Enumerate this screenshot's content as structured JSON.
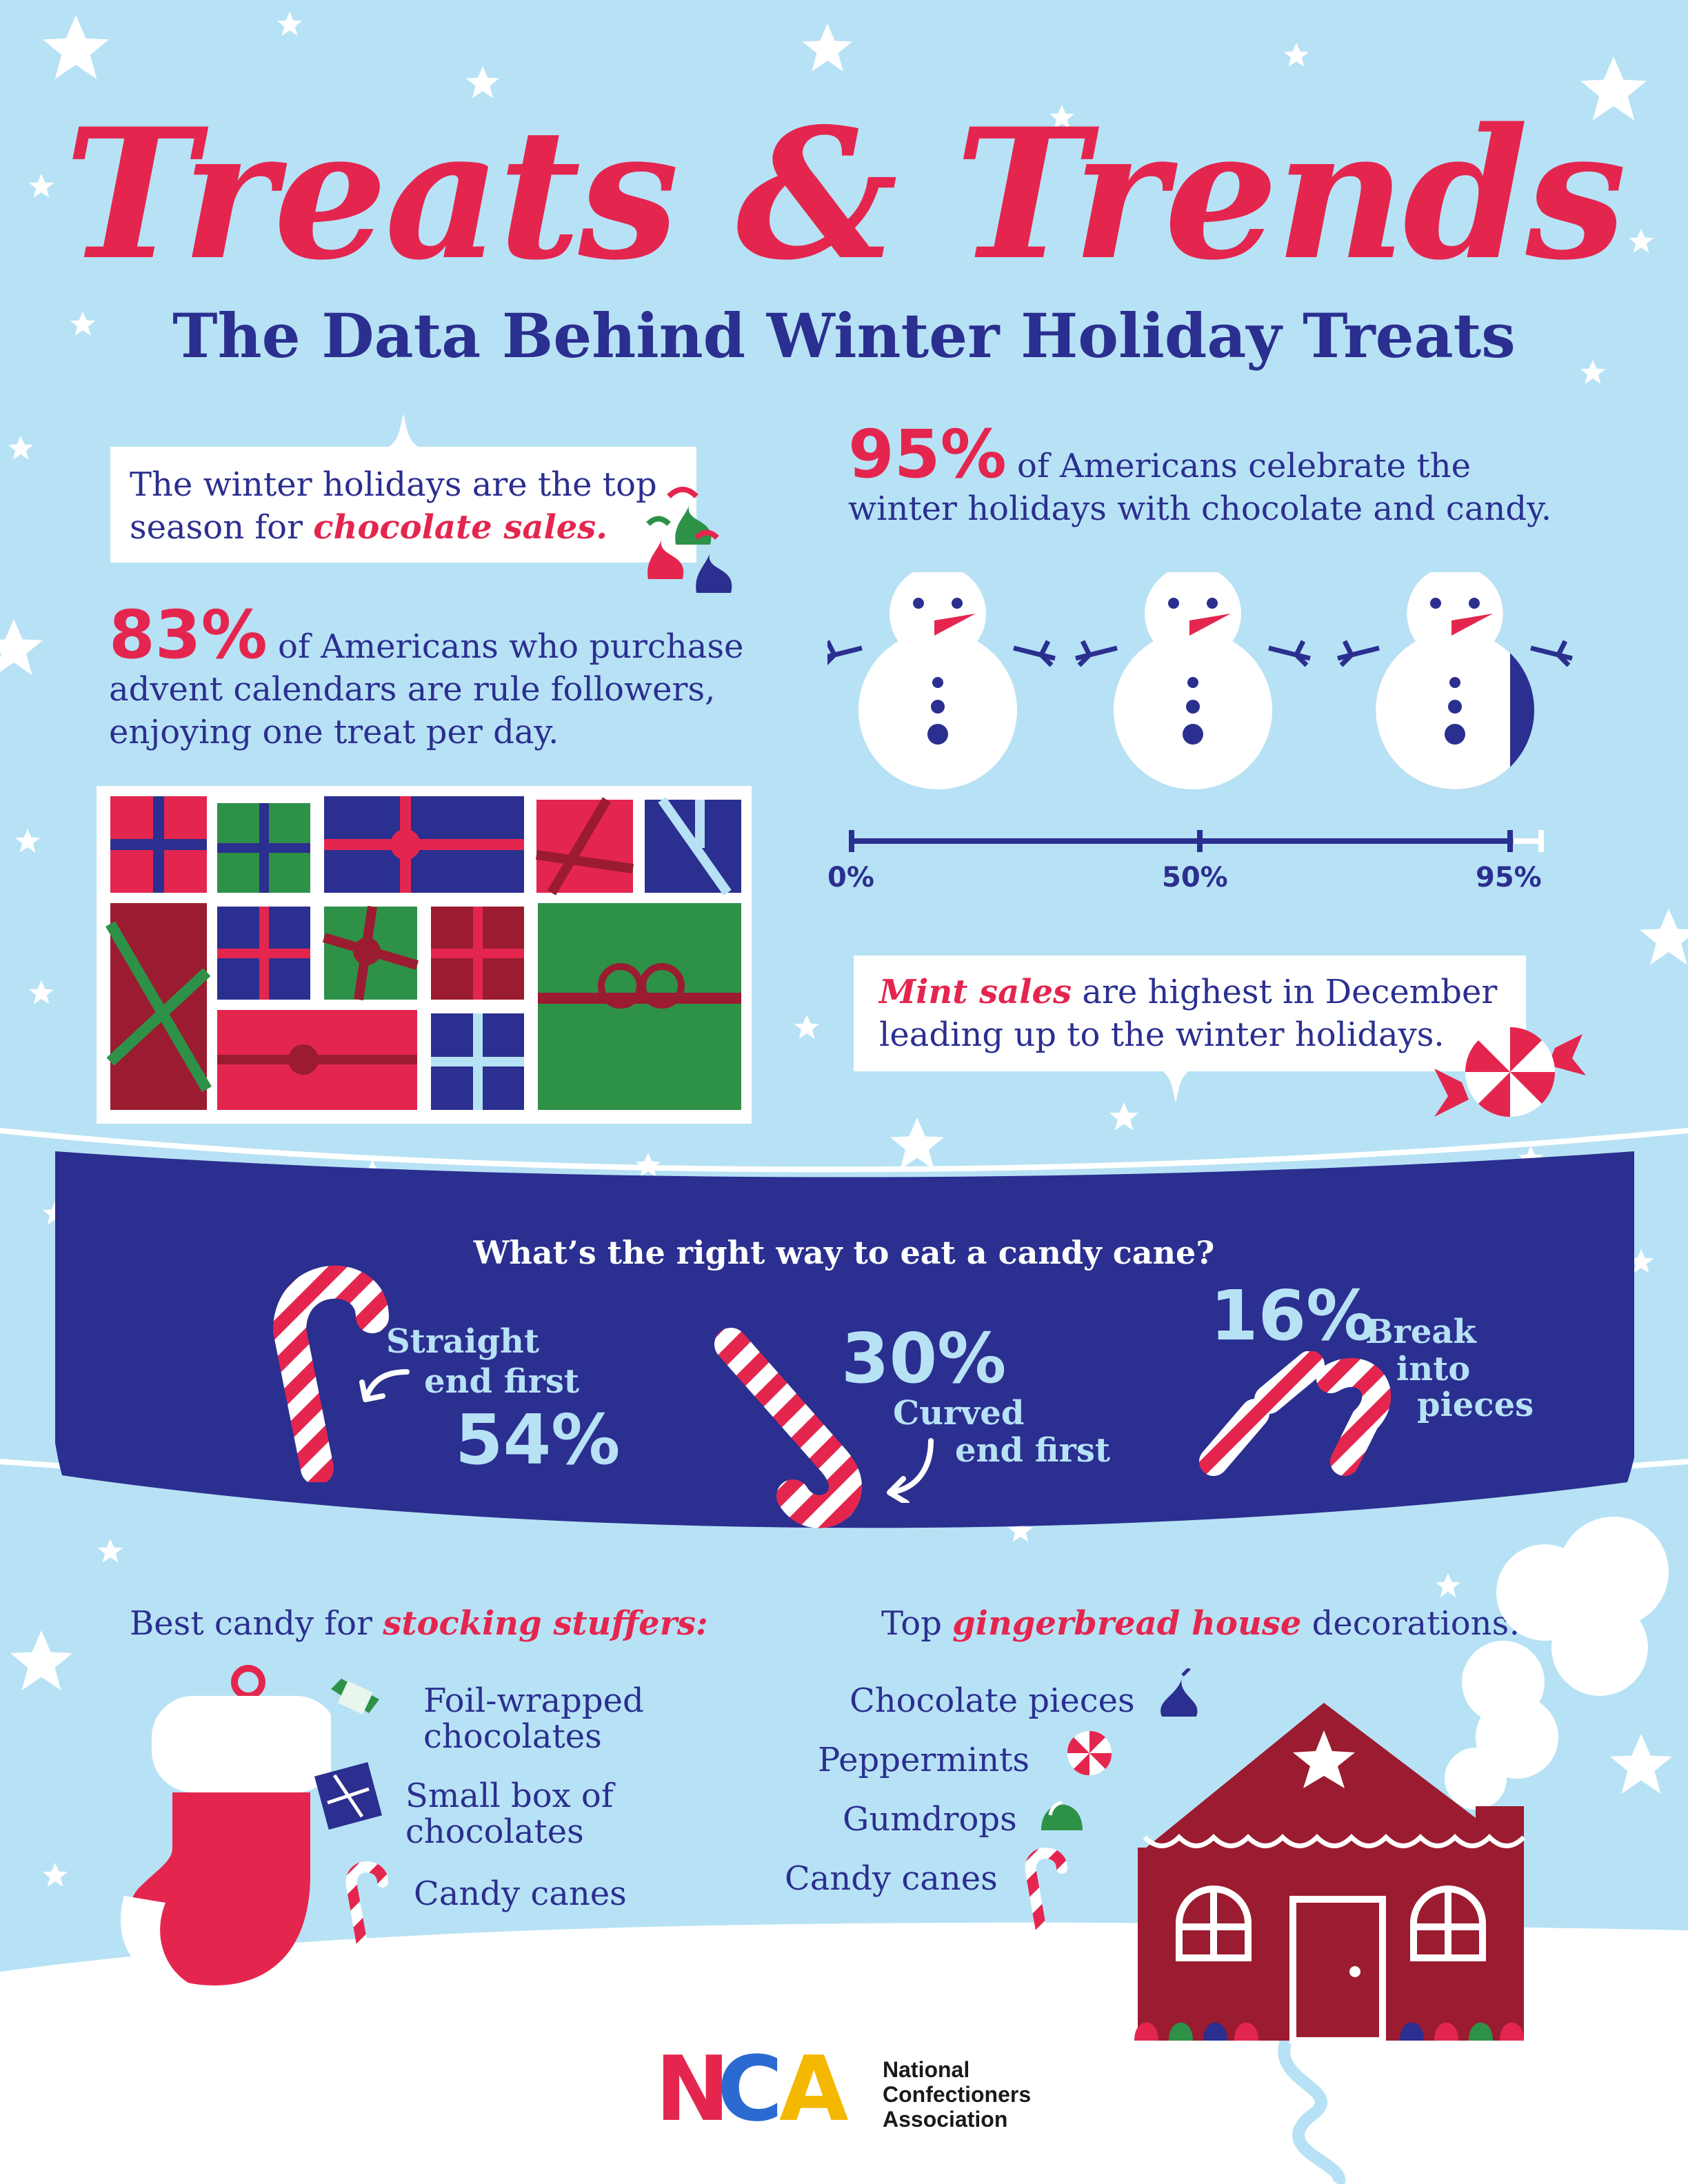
{
  "header": {
    "title": "Treats & Trends",
    "subtitle": "The Data Behind Winter Holiday Treats"
  },
  "chocolate_card": {
    "line1": "The winter holidays are the top",
    "line2_prefix": "season for ",
    "line2_emphasis": "chocolate sales."
  },
  "advent": {
    "percent": "83%",
    "line1": "of Americans who purchase",
    "line2": "advent calendars are rule followers,",
    "line3": "enjoying one treat per day."
  },
  "celebrate": {
    "percent": "95%",
    "line1": "of Americans celebrate the",
    "line2": "winter holidays with chocolate and candy."
  },
  "snowman_scale": {
    "value_percent": 95,
    "ticks": [
      "0%",
      "50%",
      "95%"
    ]
  },
  "mint_card": {
    "emphasis": "Mint sales",
    "line1_rest": " are highest in December",
    "line2": "leading up to the winter holidays."
  },
  "candy_cane": {
    "question": "What’s the right way to eat a candy cane?",
    "options": [
      {
        "label_line1": "Straight",
        "label_line2": "end first",
        "percent": "54%"
      },
      {
        "label_line1": "Curved",
        "label_line2": "end first",
        "percent": "30%"
      },
      {
        "label_line1": "Break",
        "label_line2": "into",
        "label_line3": "pieces",
        "percent": "16%"
      }
    ]
  },
  "stocking": {
    "heading_prefix": "Best candy for ",
    "heading_emphasis": "stocking stuffers:",
    "items": [
      {
        "line1": "Foil-wrapped",
        "line2": "chocolates",
        "icon": "foil-wrapped-chocolate-icon"
      },
      {
        "line1": "Small box of",
        "line2": "chocolates",
        "icon": "gift-box-icon"
      },
      {
        "line1": "Candy canes",
        "icon": "candy-cane-icon"
      }
    ]
  },
  "gingerbread": {
    "heading_prefix": "Top ",
    "heading_emphasis": "gingerbread house",
    "heading_suffix": " decorations:",
    "items": [
      {
        "label": "Chocolate pieces",
        "icon": "chocolate-kiss-icon"
      },
      {
        "label": "Peppermints",
        "icon": "peppermint-icon"
      },
      {
        "label": "Gumdrops",
        "icon": "gumdrop-icon"
      },
      {
        "label": "Candy canes",
        "icon": "candy-cane-icon"
      }
    ]
  },
  "logo": {
    "letters_n": "N",
    "letters_c": "C",
    "letters_a": "A",
    "line1": "National",
    "line2": "Confectioners",
    "line3": "Association"
  },
  "colors": {
    "background": "#b7e2f5",
    "red": "#e4264f",
    "navy": "#2b2f8f",
    "green": "#2e9148",
    "dark_red": "#9b1b30",
    "snow": "#ffffff"
  }
}
